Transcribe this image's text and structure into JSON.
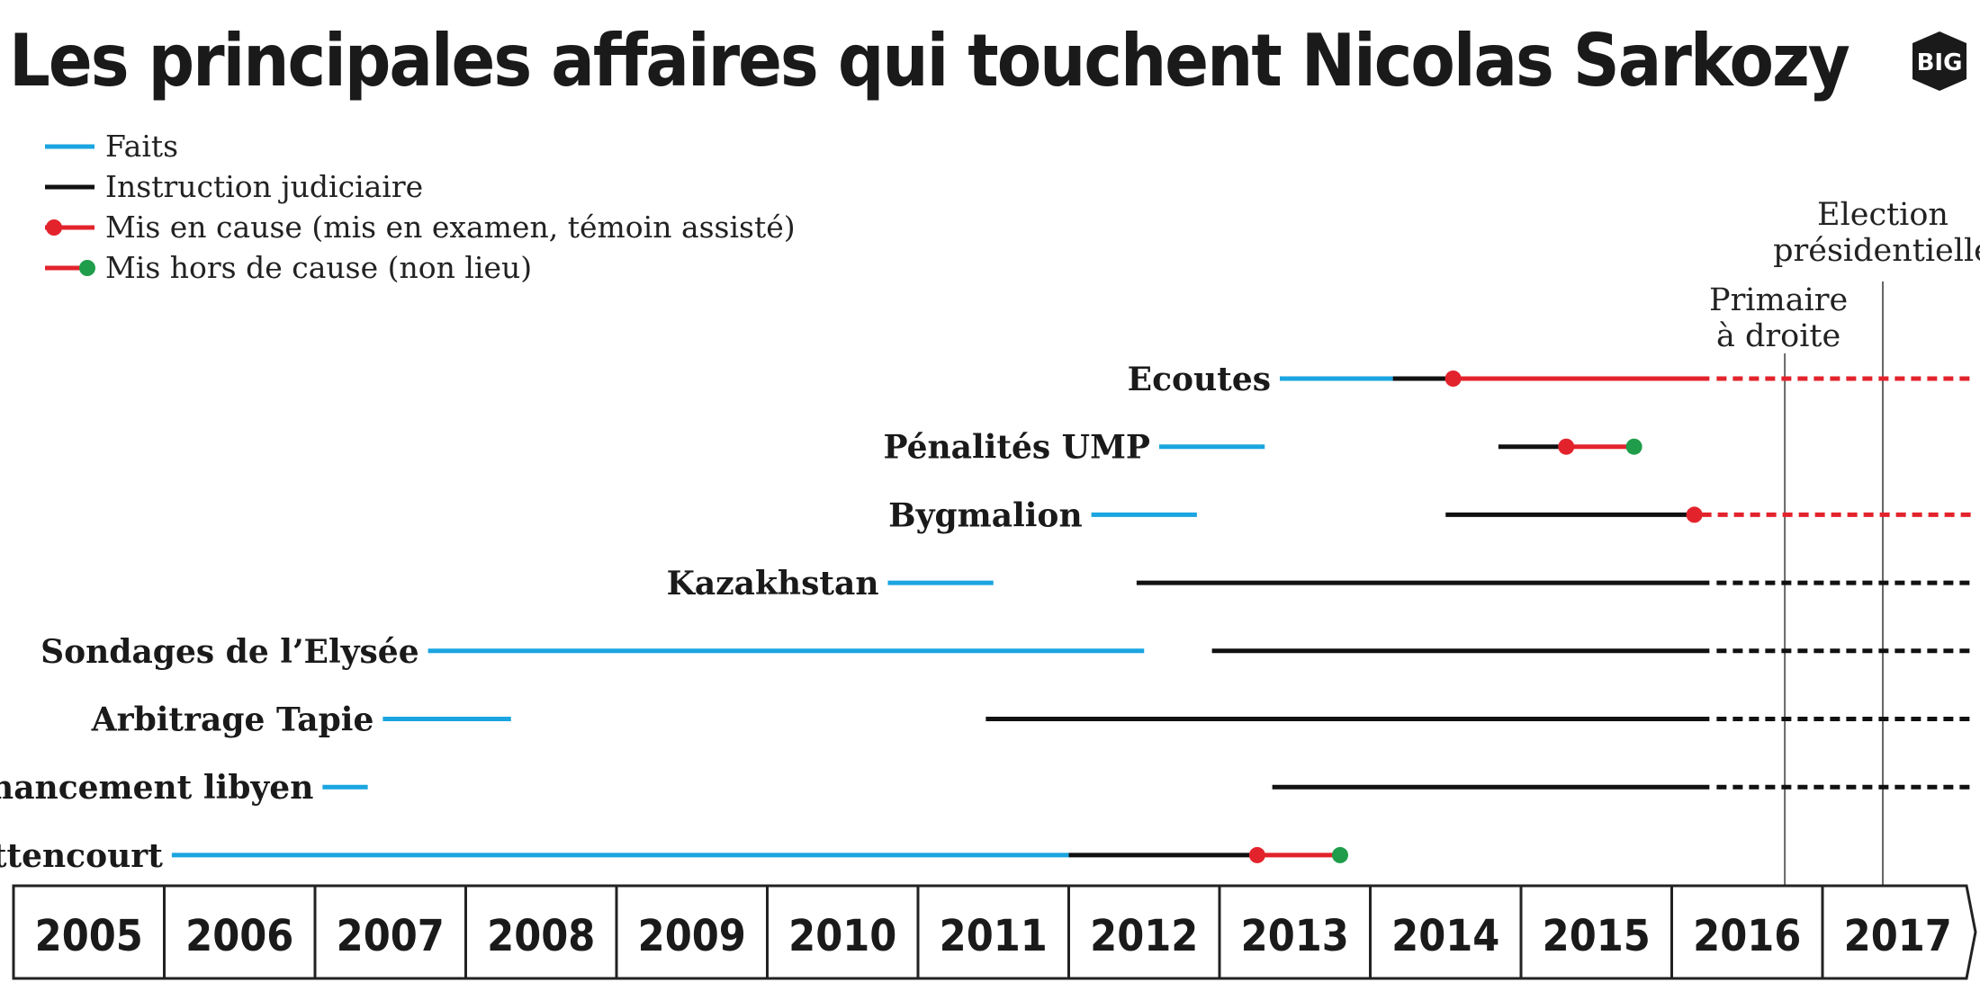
{
  "title": "Les principales affaires qui touchent Nicolas Sarkozy",
  "logo": "BIG",
  "legend": [
    {
      "label": "Faits",
      "kind": "faits"
    },
    {
      "label": "Instruction judiciaire",
      "kind": "instruction"
    },
    {
      "label": "Mis en cause (mis en examen, témoin assisté)",
      "kind": "mis_en_cause"
    },
    {
      "label": "Mis hors de cause (non lieu)",
      "kind": "hors_de_cause"
    }
  ],
  "colors": {
    "faits": "#1aa5e0",
    "instruction": "#111111",
    "mis_en_cause": "#e3232c",
    "hors_de_cause": "#1f9d4a",
    "event_line": "#666666",
    "axis_border": "#222222"
  },
  "chart_data": {
    "type": "timeline",
    "title": "Les principales affaires qui touchent Nicolas Sarkozy",
    "x_axis": {
      "ticks": [
        "2005",
        "2006",
        "2007",
        "2008",
        "2009",
        "2010",
        "2011",
        "2012",
        "2013",
        "2014",
        "2015",
        "2016",
        "2017"
      ],
      "range": [
        2005,
        2018.1
      ]
    },
    "events": [
      {
        "label": "Primaire\nà droite",
        "date": 2016.75
      },
      {
        "label": "Election\nprésidentielle",
        "date": 2017.4
      }
    ],
    "affaires": [
      {
        "name": "Ecoutes",
        "faits": [
          [
            2013.4,
            2014.15
          ]
        ],
        "instruction": [
          [
            2014.15,
            2014.55
          ]
        ],
        "mis_en_cause": [
          [
            2014.55,
            2016.25
          ]
        ],
        "projection_color": "mis_en_cause",
        "projection": [
          2016.25,
          2018.1
        ],
        "markers": [
          {
            "date": 2014.55,
            "type": "mis_en_cause"
          }
        ]
      },
      {
        "name": "Pénalités UMP",
        "faits": [
          [
            2012.6,
            2013.3
          ]
        ],
        "instruction": [
          [
            2014.85,
            2015.3
          ]
        ],
        "mis_en_cause": [
          [
            2015.3,
            2015.75
          ]
        ],
        "markers": [
          {
            "date": 2015.3,
            "type": "mis_en_cause"
          },
          {
            "date": 2015.75,
            "type": "hors_de_cause"
          }
        ]
      },
      {
        "name": "Bygmalion",
        "faits": [
          [
            2012.15,
            2012.85
          ]
        ],
        "instruction": [
          [
            2014.5,
            2016.15
          ]
        ],
        "projection_color": "mis_en_cause",
        "projection": [
          2016.15,
          2018.1
        ],
        "markers": [
          {
            "date": 2016.15,
            "type": "mis_en_cause"
          }
        ]
      },
      {
        "name": "Kazakhstan",
        "faits": [
          [
            2010.8,
            2011.5
          ]
        ],
        "instruction": [
          [
            2012.45,
            2016.25
          ]
        ],
        "projection_color": "instruction",
        "projection": [
          2016.25,
          2018.1
        ]
      },
      {
        "name": "Sondages de l’Elysée",
        "faits": [
          [
            2007.75,
            2012.5
          ]
        ],
        "instruction": [
          [
            2012.95,
            2016.25
          ]
        ],
        "projection_color": "instruction",
        "projection": [
          2016.25,
          2018.1
        ]
      },
      {
        "name": "Arbitrage Tapie",
        "faits": [
          [
            2007.45,
            2008.3
          ]
        ],
        "instruction": [
          [
            2011.45,
            2016.25
          ]
        ],
        "projection_color": "instruction",
        "projection": [
          2016.25,
          2018.1
        ]
      },
      {
        "name": "Financement libyen",
        "faits": [
          [
            2007.05,
            2007.35
          ]
        ],
        "instruction": [
          [
            2013.35,
            2016.25
          ]
        ],
        "projection_color": "instruction",
        "projection": [
          2016.25,
          2018.1
        ]
      },
      {
        "name": "Bettencourt",
        "faits": [
          [
            2006.05,
            2012.0
          ]
        ],
        "instruction": [
          [
            2012.0,
            2013.25
          ]
        ],
        "mis_en_cause": [
          [
            2013.25,
            2013.8
          ]
        ],
        "markers": [
          {
            "date": 2013.25,
            "type": "mis_en_cause"
          },
          {
            "date": 2013.8,
            "type": "hors_de_cause"
          }
        ]
      }
    ]
  }
}
